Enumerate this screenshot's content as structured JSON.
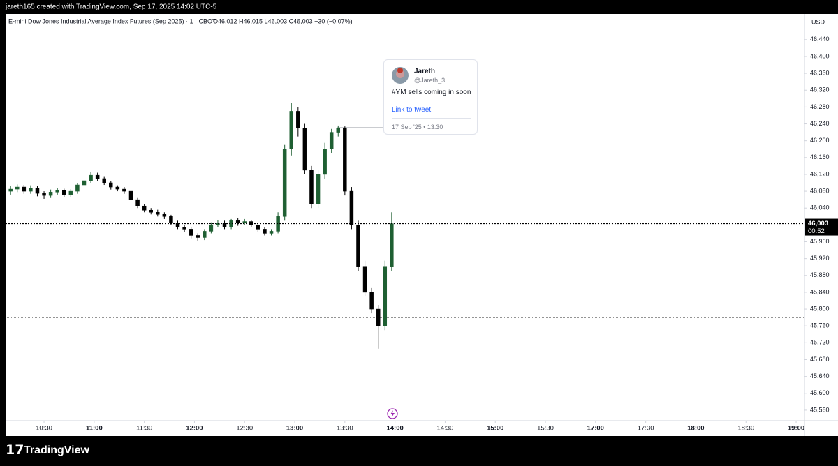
{
  "header": {
    "credit": "jareth165 created with TradingView.com, Sep 17, 2025 14:02 UTC-5",
    "footer_brand": "TradingView"
  },
  "chart_data": {
    "type": "candlestick",
    "title": "E-mini Dow Jones Industrial Average Index Futures (Sep 2025) · 1 · CBOT",
    "ohlc_text": "O46,012 H46,015 L46,003 C46,003 −30 (−0.07%)",
    "currency": "USD",
    "up_color": "#1e5f32",
    "down_color": "#000000",
    "grid": false,
    "x": [
      10,
      14,
      18,
      22,
      26,
      30,
      34,
      38,
      42,
      46,
      50,
      54,
      58,
      62,
      66,
      70,
      74,
      78,
      82,
      86,
      90,
      94,
      98,
      102,
      106,
      110,
      114,
      118,
      122,
      126,
      130,
      134,
      138,
      142,
      146,
      150,
      154,
      158,
      162,
      166,
      170,
      174,
      178,
      182,
      186,
      190,
      194,
      198,
      202,
      206,
      210,
      214,
      218,
      222,
      226,
      230,
      234,
      238
    ],
    "open": [
      46080,
      46085,
      46090,
      46080,
      46088,
      46075,
      46070,
      46078,
      46082,
      46072,
      46080,
      46095,
      46105,
      46118,
      46110,
      46100,
      46090,
      46085,
      46080,
      46060,
      46045,
      46035,
      46030,
      46025,
      46020,
      46005,
      45995,
      45990,
      45975,
      45970,
      45985,
      46000,
      46005,
      45995,
      46010,
      46005,
      46008,
      46000,
      45990,
      45980,
      45985,
      46020,
      46180,
      46270,
      46230,
      46130,
      46050,
      46120,
      46180,
      46220,
      46230,
      46080,
      46000,
      45900,
      45840,
      45800,
      45760,
      45900
    ],
    "high": [
      46092,
      46096,
      46095,
      46094,
      46092,
      46080,
      46084,
      46088,
      46086,
      46085,
      46100,
      46110,
      46125,
      46124,
      46114,
      46105,
      46094,
      46090,
      46084,
      46064,
      46050,
      46040,
      46036,
      46030,
      46024,
      46010,
      46000,
      45994,
      45980,
      45990,
      46006,
      46012,
      46010,
      46014,
      46016,
      46014,
      46012,
      46004,
      45994,
      45990,
      46030,
      46190,
      46290,
      46280,
      46240,
      46140,
      46130,
      46195,
      46228,
      46236,
      46234,
      46090,
      46010,
      45915,
      45850,
      45810,
      45915,
      46030
    ],
    "low": [
      46072,
      46078,
      46074,
      46074,
      46068,
      46062,
      46064,
      46072,
      46066,
      46066,
      46074,
      46090,
      46100,
      46104,
      46095,
      46084,
      46080,
      46074,
      46055,
      46040,
      46030,
      46025,
      46020,
      46014,
      46000,
      45990,
      45984,
      45968,
      45962,
      45964,
      45980,
      45994,
      45990,
      45990,
      45998,
      46000,
      45994,
      45984,
      45975,
      45975,
      45980,
      46010,
      46165,
      46210,
      46120,
      46040,
      46040,
      46110,
      46170,
      46210,
      46070,
      45990,
      45890,
      45830,
      45790,
      45706,
      45750,
      45890
    ],
    "close": [
      46085,
      46090,
      46080,
      46088,
      46075,
      46070,
      46078,
      46082,
      46072,
      46080,
      46095,
      46105,
      46118,
      46110,
      46100,
      46090,
      46085,
      46080,
      46060,
      46045,
      46035,
      46030,
      46025,
      46020,
      46005,
      45995,
      45990,
      45975,
      45970,
      45985,
      46000,
      46005,
      45995,
      46010,
      46005,
      46008,
      46000,
      45990,
      45980,
      45985,
      46020,
      46180,
      46270,
      46230,
      46130,
      46050,
      46120,
      46180,
      46220,
      46230,
      46080,
      46000,
      45900,
      45840,
      45800,
      45760,
      45900,
      46003
    ],
    "last_price": {
      "value": 46003,
      "label": "46,003"
    },
    "countdown": "00:52",
    "horizontal_line": 45780,
    "ylim": [
      45535,
      46501
    ],
    "yticks": [
      {
        "value": 45560,
        "label": "45,560"
      },
      {
        "value": 45600,
        "label": "45,600"
      },
      {
        "value": 45640,
        "label": "45,640"
      },
      {
        "value": 45680,
        "label": "45,680"
      },
      {
        "value": 45720,
        "label": "45,720"
      },
      {
        "value": 45760,
        "label": "45,760"
      },
      {
        "value": 45800,
        "label": "45,800"
      },
      {
        "value": 45840,
        "label": "45,840"
      },
      {
        "value": 45880,
        "label": "45,880"
      },
      {
        "value": 45920,
        "label": "45,920"
      },
      {
        "value": 45960,
        "label": "45,960"
      },
      {
        "value": 46040,
        "label": "46,040"
      },
      {
        "value": 46080,
        "label": "46,080"
      },
      {
        "value": 46120,
        "label": "46,120"
      },
      {
        "value": 46160,
        "label": "46,160"
      },
      {
        "value": 46200,
        "label": "46,200"
      },
      {
        "value": 46240,
        "label": "46,240"
      },
      {
        "value": 46280,
        "label": "46,280"
      },
      {
        "value": 46320,
        "label": "46,320"
      },
      {
        "value": 46360,
        "label": "46,360"
      },
      {
        "value": 46400,
        "label": "46,400"
      },
      {
        "value": 46440,
        "label": "46,440"
      }
    ],
    "xlim": [
      7,
      485
    ],
    "xticks": [
      {
        "value": 30,
        "label": "10:30"
      },
      {
        "value": 60,
        "label": "11:00"
      },
      {
        "value": 90,
        "label": "11:30"
      },
      {
        "value": 120,
        "label": "12:00"
      },
      {
        "value": 150,
        "label": "12:30"
      },
      {
        "value": 180,
        "label": "13:00"
      },
      {
        "value": 210,
        "label": "13:30"
      },
      {
        "value": 240,
        "label": "14:00"
      },
      {
        "value": 270,
        "label": "14:30"
      },
      {
        "value": 300,
        "label": "15:00"
      },
      {
        "value": 330,
        "label": "15:30"
      },
      {
        "value": 360,
        "label": "17:00"
      },
      {
        "value": 390,
        "label": "17:30"
      },
      {
        "value": 420,
        "label": "18:00"
      },
      {
        "value": 450,
        "label": "18:30"
      },
      {
        "value": 480,
        "label": "19:00"
      }
    ],
    "annotation": {
      "name": "Jareth",
      "handle": "@Jareth_3",
      "text": "#YM sells coming in soon",
      "link": "Link to tweet",
      "date": "17 Sep '25 • 13:30"
    }
  }
}
